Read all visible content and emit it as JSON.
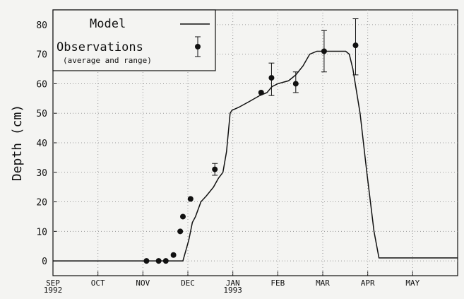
{
  "chart_data": {
    "type": "line-scatter",
    "ylabel": "Depth (cm)",
    "xlim": [
      0,
      9
    ],
    "ylim": [
      -5,
      85
    ],
    "xticks": [
      {
        "value": 0,
        "label": "SEP 1992"
      },
      {
        "value": 1,
        "label": "OCT"
      },
      {
        "value": 2,
        "label": "NOV"
      },
      {
        "value": 3,
        "label": "DEC"
      },
      {
        "value": 4,
        "label": "JAN 1993"
      },
      {
        "value": 5,
        "label": "FEB"
      },
      {
        "value": 6,
        "label": "MAR"
      },
      {
        "value": 7,
        "label": "APR"
      },
      {
        "value": 8,
        "label": "MAY"
      }
    ],
    "yticks": [
      0,
      10,
      20,
      30,
      40,
      50,
      60,
      70,
      80
    ],
    "grid": true,
    "legend": "upper left",
    "model": {
      "name": "Model",
      "color": "#111111",
      "x": [
        0,
        2.89,
        3.02,
        3.1,
        3.17,
        3.29,
        3.41,
        3.57,
        3.68,
        3.78,
        3.86,
        3.94,
        3.98,
        4.13,
        4.37,
        4.6,
        4.76,
        4.87,
        5.0,
        5.24,
        5.4,
        5.56,
        5.71,
        5.87,
        6.19,
        6.51,
        6.59,
        6.67,
        6.83,
        6.98,
        7.14,
        7.25,
        9.0
      ],
      "values": [
        0,
        0,
        7,
        13,
        15,
        20,
        22,
        25,
        28,
        30,
        37,
        50,
        51,
        52,
        54,
        56,
        57,
        59,
        60,
        61,
        63,
        66,
        70,
        71,
        71,
        71,
        70,
        65,
        50,
        30,
        10,
        1,
        1
      ]
    },
    "observations": {
      "name": "Observations",
      "note": "(average and range)",
      "color": "#111111",
      "x": [
        2.08,
        2.35,
        2.51,
        2.68,
        2.83,
        2.89,
        3.06,
        3.6,
        4.63,
        4.86,
        5.4,
        6.03,
        6.73
      ],
      "values": [
        0,
        0,
        0,
        2,
        10,
        15,
        21,
        31,
        57,
        62,
        60,
        71,
        73
      ],
      "low": [
        null,
        null,
        null,
        null,
        null,
        null,
        null,
        29,
        null,
        56,
        57,
        64,
        63
      ],
      "high": [
        null,
        null,
        null,
        null,
        null,
        null,
        null,
        33,
        null,
        67,
        64,
        78,
        82
      ]
    }
  }
}
